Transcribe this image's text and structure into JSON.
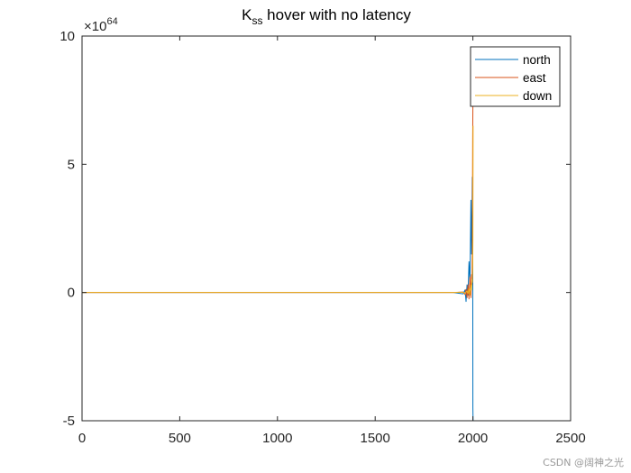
{
  "chart_data": {
    "type": "line",
    "title_main": "K",
    "title_sub": "ss",
    "title_rest": " hover with no latency",
    "y_exponent_base": "×10",
    "y_exponent_power": "64",
    "xlim": [
      0,
      2500
    ],
    "ylim": [
      -5,
      10
    ],
    "xticks": [
      0,
      500,
      1000,
      1500,
      2000,
      2500
    ],
    "yticks": [
      -5,
      0,
      5,
      10
    ],
    "xtick_labels": [
      "0",
      "500",
      "1000",
      "1500",
      "2000",
      "2500"
    ],
    "ytick_labels": [
      "-5",
      "0",
      "5",
      "10"
    ],
    "grid": false,
    "legend_position": "top-right",
    "series": [
      {
        "name": "north",
        "color": "#0072BD",
        "x": [
          0,
          1900,
          1950,
          1960,
          1965,
          1970,
          1975,
          1980,
          1985,
          1990,
          1993,
          1995,
          1997,
          1999,
          2000,
          2001,
          2002,
          2003
        ],
        "y": [
          0,
          0,
          -0.05,
          0.1,
          -0.35,
          0.3,
          -0.1,
          1.2,
          0.4,
          3.6,
          1.5,
          2.5,
          4.5,
          3.2,
          -4.5,
          -5,
          -5,
          -5
        ]
      },
      {
        "name": "east",
        "color": "#D95319",
        "x": [
          0,
          1900,
          1950,
          1960,
          1965,
          1970,
          1975,
          1980,
          1985,
          1990,
          1993,
          1995,
          1997,
          1999,
          2000,
          2001
        ],
        "y": [
          0,
          0,
          0.02,
          -0.08,
          0.12,
          -0.2,
          0.3,
          -0.25,
          0.6,
          -0.2,
          0.7,
          0.3,
          1.5,
          6.0,
          7.3,
          7.3
        ]
      },
      {
        "name": "down",
        "color": "#EDB120",
        "x": [
          0,
          1900,
          1950,
          1960,
          1970,
          1975,
          1980,
          1985,
          1990,
          1993,
          1995,
          1997,
          1999,
          2000,
          2001
        ],
        "y": [
          0,
          0,
          0.01,
          -0.03,
          0.06,
          -0.05,
          0.15,
          -0.1,
          0.3,
          0.1,
          0.5,
          0.4,
          1.0,
          2.0,
          6.5
        ]
      }
    ]
  },
  "watermark": "CSDN @阔神之光"
}
